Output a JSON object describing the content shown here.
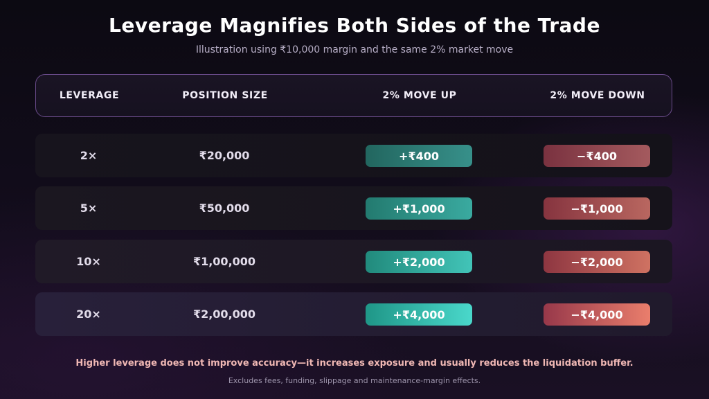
{
  "title": "Leverage Magnifies Both Sides of the Trade",
  "subtitle": "Illustration using ₹10,000 margin and the same 2% market move",
  "headers": {
    "leverage": "LEVERAGE",
    "position_size": "POSITION SIZE",
    "move_up": "2% MOVE UP",
    "move_down": "2% MOVE DOWN"
  },
  "rows": [
    {
      "leverage": "2×",
      "position_size": "₹20,000",
      "move_up": "+₹400",
      "move_down": "−₹400"
    },
    {
      "leverage": "5×",
      "position_size": "₹50,000",
      "move_up": "+₹1,000",
      "move_down": "−₹1,000"
    },
    {
      "leverage": "10×",
      "position_size": "₹1,00,000",
      "move_up": "+₹2,000",
      "move_down": "−₹2,000"
    },
    {
      "leverage": "20×",
      "position_size": "₹2,00,000",
      "move_up": "+₹4,000",
      "move_down": "−₹4,000"
    }
  ],
  "footer": {
    "main": "Higher leverage does not improve accuracy—it increases exposure and usually reduces the liquidation buffer.",
    "note": "Excludes fees, funding, slippage and maintenance-margin effects."
  },
  "colors": {
    "gain": "#3aaaa0",
    "loss": "#b96760",
    "header_border": "#6b4c8c",
    "footer_highlight": "#f0b8b4"
  }
}
